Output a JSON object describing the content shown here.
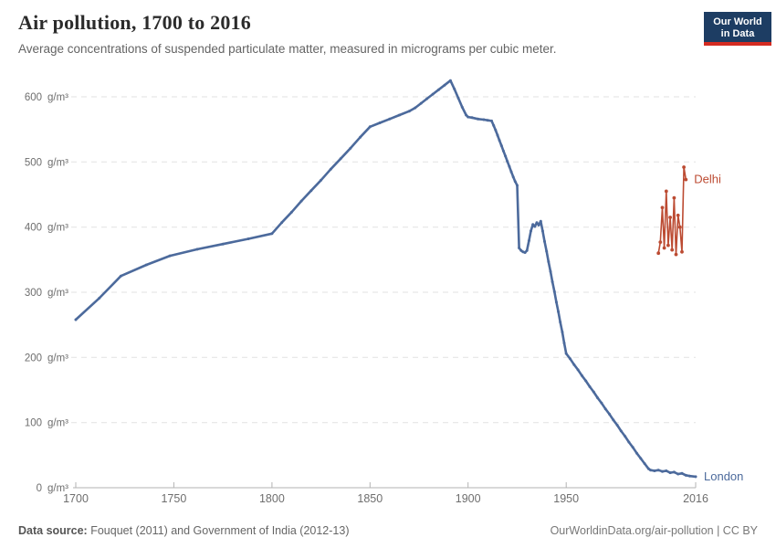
{
  "header": {
    "title": "Air pollution, 1700 to 2016",
    "subtitle": "Average concentrations of suspended particulate matter, measured in micrograms per cubic meter.",
    "logo": {
      "line1": "Our World",
      "line2": "in Data"
    }
  },
  "chart_data": {
    "type": "line",
    "title": "Air pollution, 1700 to 2016",
    "xlabel": "",
    "ylabel": "g/m³",
    "unit": "g/m³",
    "xlim": [
      1700,
      2016
    ],
    "ylim": [
      0,
      600
    ],
    "x_ticks": [
      1700,
      1750,
      1800,
      1850,
      1900,
      1950,
      2016
    ],
    "y_ticks": [
      0,
      100,
      200,
      300,
      400,
      500,
      600
    ],
    "grid": "horizontal-dashed",
    "legend_position": "end-of-line labels",
    "series": [
      {
        "name": "London",
        "color": "#4C6A9C",
        "line_width": 2.6,
        "dot_radius": 1.5,
        "points": [
          [
            1700,
            258
          ],
          [
            1712,
            291
          ],
          [
            1723,
            325
          ],
          [
            1736,
            342
          ],
          [
            1748,
            356
          ],
          [
            1762,
            366
          ],
          [
            1775,
            374
          ],
          [
            1788,
            382
          ],
          [
            1800,
            390
          ],
          [
            1805,
            407
          ],
          [
            1810,
            423
          ],
          [
            1815,
            440
          ],
          [
            1820,
            456
          ],
          [
            1825,
            472
          ],
          [
            1830,
            489
          ],
          [
            1835,
            505
          ],
          [
            1840,
            521
          ],
          [
            1845,
            538
          ],
          [
            1850,
            554
          ],
          [
            1855,
            560
          ],
          [
            1860,
            566
          ],
          [
            1865,
            572
          ],
          [
            1870,
            578
          ],
          [
            1873,
            583
          ],
          [
            1876,
            590
          ],
          [
            1879,
            597
          ],
          [
            1882,
            604
          ],
          [
            1885,
            611
          ],
          [
            1888,
            618
          ],
          [
            1891,
            625
          ],
          [
            1893,
            612
          ],
          [
            1895,
            598
          ],
          [
            1897,
            584
          ],
          [
            1899,
            572
          ],
          [
            1900,
            569
          ],
          [
            1902,
            568
          ],
          [
            1905,
            566
          ],
          [
            1908,
            565
          ],
          [
            1910,
            564
          ],
          [
            1912,
            563
          ],
          [
            1913,
            556
          ],
          [
            1914,
            549
          ],
          [
            1915,
            541
          ],
          [
            1916,
            533
          ],
          [
            1917,
            525
          ],
          [
            1918,
            517
          ],
          [
            1919,
            509
          ],
          [
            1920,
            501
          ],
          [
            1921,
            493
          ],
          [
            1922,
            485
          ],
          [
            1923,
            477
          ],
          [
            1924,
            470
          ],
          [
            1925,
            464
          ],
          [
            1926,
            368
          ],
          [
            1927,
            364
          ],
          [
            1928,
            362
          ],
          [
            1929,
            361
          ],
          [
            1930,
            364
          ],
          [
            1931,
            379
          ],
          [
            1932,
            394
          ],
          [
            1933,
            404
          ],
          [
            1934,
            401
          ],
          [
            1935,
            407
          ],
          [
            1936,
            403
          ],
          [
            1937,
            409
          ],
          [
            1938,
            394
          ],
          [
            1939,
            378
          ],
          [
            1940,
            363
          ],
          [
            1941,
            347
          ],
          [
            1942,
            332
          ],
          [
            1943,
            316
          ],
          [
            1944,
            301
          ],
          [
            1945,
            285
          ],
          [
            1946,
            270
          ],
          [
            1947,
            254
          ],
          [
            1948,
            239
          ],
          [
            1949,
            222
          ],
          [
            1950,
            206
          ],
          [
            1952,
            198
          ],
          [
            1954,
            189
          ],
          [
            1956,
            181
          ],
          [
            1958,
            172
          ],
          [
            1960,
            164
          ],
          [
            1962,
            155
          ],
          [
            1964,
            147
          ],
          [
            1966,
            138
          ],
          [
            1968,
            130
          ],
          [
            1970,
            121
          ],
          [
            1972,
            113
          ],
          [
            1974,
            104
          ],
          [
            1976,
            96
          ],
          [
            1978,
            87
          ],
          [
            1980,
            79
          ],
          [
            1982,
            70
          ],
          [
            1984,
            62
          ],
          [
            1986,
            53
          ],
          [
            1988,
            45
          ],
          [
            1990,
            37
          ],
          [
            1992,
            29
          ],
          [
            1993,
            27
          ],
          [
            1995,
            26
          ],
          [
            1997,
            27
          ],
          [
            1999,
            25
          ],
          [
            2001,
            26
          ],
          [
            2003,
            23
          ],
          [
            2005,
            24
          ],
          [
            2007,
            21
          ],
          [
            2009,
            22
          ],
          [
            2011,
            19
          ],
          [
            2013,
            18
          ],
          [
            2016,
            17
          ]
        ]
      },
      {
        "name": "Delhi",
        "color": "#BC4B32",
        "line_width": 1.6,
        "dot_radius": 1.9,
        "points": [
          [
            1997,
            360
          ],
          [
            1998,
            377
          ],
          [
            1999,
            430
          ],
          [
            2000,
            368
          ],
          [
            2001,
            455
          ],
          [
            2002,
            372
          ],
          [
            2003,
            415
          ],
          [
            2004,
            365
          ],
          [
            2005,
            445
          ],
          [
            2006,
            358
          ],
          [
            2007,
            418
          ],
          [
            2008,
            400
          ],
          [
            2009,
            362
          ],
          [
            2010,
            492
          ],
          [
            2011,
            473
          ]
        ]
      }
    ]
  },
  "footer": {
    "source_label": "Data source:",
    "source_text": " Fouquet (2011) and Government of India (2012-13)",
    "credit": "OurWorldinData.org/air-pollution | CC BY"
  },
  "colors": {
    "london": "#4C6A9C",
    "delhi": "#BC4B32",
    "logo_bg": "#1d3d63",
    "logo_bar": "#d42b21",
    "gridline": "#e2e2e2",
    "axis": "#b3b3b3"
  }
}
